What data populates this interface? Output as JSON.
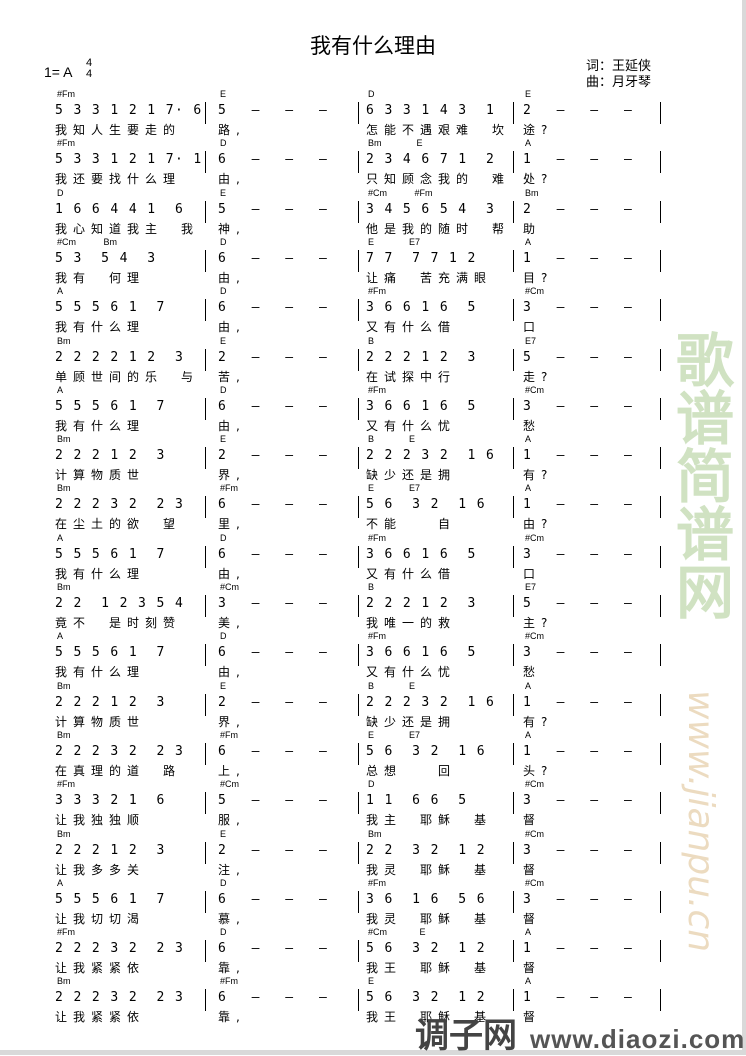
{
  "title": "我有什么理由",
  "key": "1= A",
  "time_signature": {
    "top": "4",
    "bottom": "4"
  },
  "lyricist": "词：王延侠",
  "composer": "曲：月牙琴",
  "watermarks": {
    "green": "歌谱简谱网",
    "url_faint": "www.jianpu.cn",
    "brand": "调子网",
    "brand_url": "www.diaozi.com"
  },
  "systems": [
    [
      {
        "chords": "#Fm",
        "notes": "5 3 3 1 2 1 7· 6",
        "lyrics": "我知人生要走的"
      },
      {
        "chords": "E",
        "notes": "5 – – –",
        "lyrics": "路,"
      },
      {
        "chords": "D",
        "notes": "6 3 3 1 4 3  1",
        "lyrics": "怎能不遇艰难　坎"
      },
      {
        "chords": "E",
        "notes": "2 – – –",
        "lyrics": "途?"
      }
    ],
    [
      {
        "chords": "#Fm",
        "notes": "5 3 3 1 2 1 7· 1",
        "lyrics": "我还要找什么理"
      },
      {
        "chords": "D",
        "notes": "6 – – –",
        "lyrics": "由,"
      },
      {
        "chords": "Bm              E",
        "notes": "2 3 4 6 7 1  2",
        "lyrics": "只知顾念我的　难"
      },
      {
        "chords": "A",
        "notes": "1 – – –",
        "lyrics": "处?"
      }
    ],
    [
      {
        "chords": "D",
        "notes": "1 6 6 4 4 1  6",
        "lyrics": "我心知道我主　我"
      },
      {
        "chords": "E",
        "notes": "5 – – –",
        "lyrics": "神,"
      },
      {
        "chords": "#Cm           #Fm",
        "notes": "3 4 5 6 5 4  3",
        "lyrics": "他是我的随时　帮"
      },
      {
        "chords": "Bm",
        "notes": "2 – – –",
        "lyrics": "助"
      }
    ],
    [
      {
        "chords": "#Cm           Bm",
        "notes": "5 3  5 4  3",
        "lyrics": "我有　何理"
      },
      {
        "chords": "D",
        "notes": "6 – – –",
        "lyrics": "由,"
      },
      {
        "chords": "E              E7",
        "notes": "7 7  7 7 1 2",
        "lyrics": "让痛　苦充满眼"
      },
      {
        "chords": "A",
        "notes": "1 – – –",
        "lyrics": "目?"
      }
    ],
    [
      {
        "chords": "A",
        "notes": "5 5 5 6 1  7",
        "lyrics": "我有什么理"
      },
      {
        "chords": "D",
        "notes": "6 – – –",
        "lyrics": "由,"
      },
      {
        "chords": "#Fm",
        "notes": "3 6 6 1 6  5",
        "lyrics": "又有什么借"
      },
      {
        "chords": "#Cm",
        "notes": "3 – – –",
        "lyrics": "口"
      }
    ],
    [
      {
        "chords": "Bm",
        "notes": "2 2 2 2 1 2  3",
        "lyrics": "单顾世间的乐　与"
      },
      {
        "chords": "E",
        "notes": "2 – – –",
        "lyrics": "苦,"
      },
      {
        "chords": "B",
        "notes": "2 2 2 1 2  3",
        "lyrics": "在试探中行"
      },
      {
        "chords": "E7",
        "notes": "5 – – –",
        "lyrics": "走?"
      }
    ],
    [
      {
        "chords": "A",
        "notes": "5 5 5 6 1  7",
        "lyrics": "我有什么理"
      },
      {
        "chords": "D",
        "notes": "6 – – –",
        "lyrics": "由,"
      },
      {
        "chords": "#Fm",
        "notes": "3 6 6 1 6  5",
        "lyrics": "又有什么忧"
      },
      {
        "chords": "#Cm",
        "notes": "3 – – –",
        "lyrics": "愁"
      }
    ],
    [
      {
        "chords": "Bm",
        "notes": "2 2 2 1 2  3",
        "lyrics": "计算物质世"
      },
      {
        "chords": "E",
        "notes": "2 – – –",
        "lyrics": "界,"
      },
      {
        "chords": "B              E",
        "notes": "2 2 2 3 2  1 6",
        "lyrics": "缺少还是拥"
      },
      {
        "chords": "A",
        "notes": "1 – – –",
        "lyrics": "有?"
      }
    ],
    [
      {
        "chords": "Bm",
        "notes": "2 2 2 3 2  2 3",
        "lyrics": "在尘土的欲　望"
      },
      {
        "chords": "#Fm",
        "notes": "6 – – –",
        "lyrics": "里,"
      },
      {
        "chords": "E              E7",
        "notes": "5 6  3 2  1 6",
        "lyrics": "不能　　自"
      },
      {
        "chords": "A",
        "notes": "1 – – –",
        "lyrics": "由?"
      }
    ],
    [
      {
        "chords": "A",
        "notes": "5 5 5 6 1  7",
        "lyrics": "我有什么理"
      },
      {
        "chords": "D",
        "notes": "6 – – –",
        "lyrics": "由,"
      },
      {
        "chords": "#Fm",
        "notes": "3 6 6 1 6  5",
        "lyrics": "又有什么借"
      },
      {
        "chords": "#Cm",
        "notes": "3 – – –",
        "lyrics": "口"
      }
    ],
    [
      {
        "chords": "Bm",
        "notes": "2 2  1 2 3 5 4",
        "lyrics": "竟不　是时刻赞"
      },
      {
        "chords": "#Cm",
        "notes": "3 – – –",
        "lyrics": "美,"
      },
      {
        "chords": "B",
        "notes": "2 2 2 1 2  3",
        "lyrics": "我唯一的救"
      },
      {
        "chords": "E7",
        "notes": "5 – – –",
        "lyrics": "主?"
      }
    ],
    [
      {
        "chords": "A",
        "notes": "5 5 5 6 1  7",
        "lyrics": "我有什么理"
      },
      {
        "chords": "D",
        "notes": "6 – – –",
        "lyrics": "由,"
      },
      {
        "chords": "#Fm",
        "notes": "3 6 6 1 6  5",
        "lyrics": "又有什么忧"
      },
      {
        "chords": "#Cm",
        "notes": "3 – – –",
        "lyrics": "愁"
      }
    ],
    [
      {
        "chords": "Bm",
        "notes": "2 2 2 1 2  3",
        "lyrics": "计算物质世"
      },
      {
        "chords": "E",
        "notes": "2 – – –",
        "lyrics": "界,"
      },
      {
        "chords": "B              E",
        "notes": "2 2 2 3 2  1 6",
        "lyrics": "缺少还是拥"
      },
      {
        "chords": "A",
        "notes": "1 – – –",
        "lyrics": "有?"
      }
    ],
    [
      {
        "chords": "Bm",
        "notes": "2 2 2 3 2  2 3",
        "lyrics": "在真理的道　路"
      },
      {
        "chords": "#Fm",
        "notes": "6 – – –",
        "lyrics": "上,"
      },
      {
        "chords": "E              E7",
        "notes": "5 6  3 2  1 6",
        "lyrics": "总想　　回"
      },
      {
        "chords": "A",
        "notes": "1 – – –",
        "lyrics": "头?"
      }
    ],
    [
      {
        "chords": "#Fm",
        "notes": "3 3 3 2 1  6",
        "lyrics": "让我独独顺"
      },
      {
        "chords": "#Cm",
        "notes": "5 – – –",
        "lyrics": "服,"
      },
      {
        "chords": "D",
        "notes": "1 1  6 6  5",
        "lyrics": "我主　耶稣　基"
      },
      {
        "chords": "#Cm",
        "notes": "3 – – –",
        "lyrics": "督"
      }
    ],
    [
      {
        "chords": "Bm",
        "notes": "2 2 2 1 2  3",
        "lyrics": "让我多多关"
      },
      {
        "chords": "E",
        "notes": "2 – – –",
        "lyrics": "注,"
      },
      {
        "chords": "Bm",
        "notes": "2 2  3 2  1 2",
        "lyrics": "我灵　耶稣　基"
      },
      {
        "chords": "#Cm",
        "notes": "3 – – –",
        "lyrics": "督"
      }
    ],
    [
      {
        "chords": "A",
        "notes": "5 5 5 6 1  7",
        "lyrics": "让我切切渴"
      },
      {
        "chords": "D",
        "notes": "6 – – –",
        "lyrics": "慕,"
      },
      {
        "chords": "#Fm",
        "notes": "3 6  1 6  5 6",
        "lyrics": "我灵　耶稣　基"
      },
      {
        "chords": "#Cm",
        "notes": "3 – – –",
        "lyrics": "督"
      }
    ],
    [
      {
        "chords": "#Fm",
        "notes": "2 2 2 3 2  2 3",
        "lyrics": "让我紧紧依"
      },
      {
        "chords": "D",
        "notes": "6 – – –",
        "lyrics": "靠,"
      },
      {
        "chords": "#Cm             E",
        "notes": "5 6  3 2  1 2",
        "lyrics": "我王　耶稣　基"
      },
      {
        "chords": "A",
        "notes": "1 – – –",
        "lyrics": "督"
      }
    ],
    [
      {
        "chords": "Bm",
        "notes": "2 2 2 3 2  2 3",
        "lyrics": "让我紧紧依"
      },
      {
        "chords": "#Fm",
        "notes": "6 – – –",
        "lyrics": "靠,"
      },
      {
        "chords": "E",
        "notes": "5 6  3 2  1 2",
        "lyrics": "我王　耶稣　基"
      },
      {
        "chords": "A",
        "notes": "1 – – –",
        "lyrics": "督"
      }
    ]
  ]
}
